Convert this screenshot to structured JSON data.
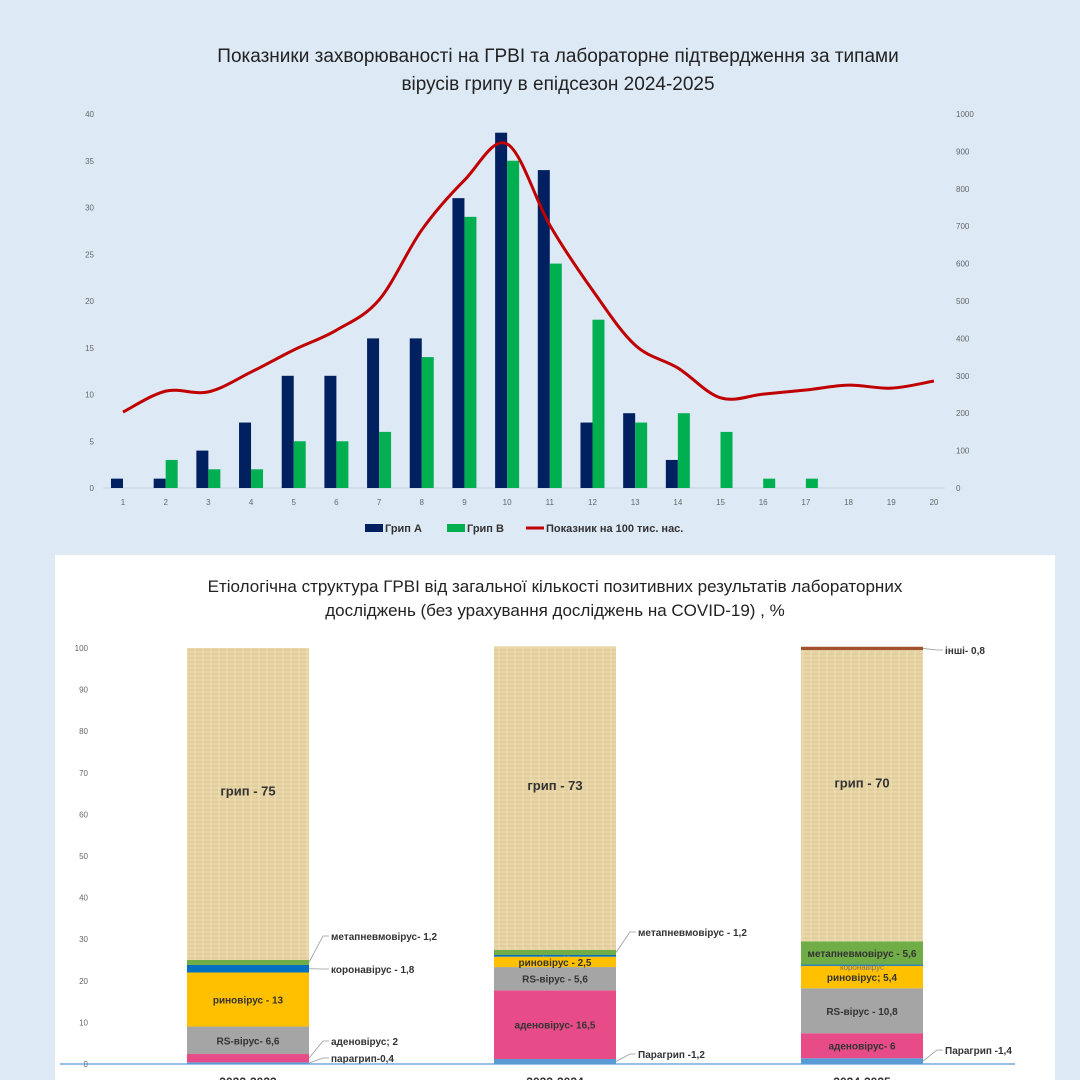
{
  "chart_data": [
    {
      "type": "bar",
      "title": [
        "Показники захворюваності на ГРВІ та лабораторне підтвердження за типами",
        "вірусів грипу в епідсезон 2024-2025"
      ],
      "categories": [
        "1",
        "2",
        "3",
        "4",
        "5",
        "6",
        "7",
        "8",
        "9",
        "10",
        "11",
        "12",
        "13",
        "14",
        "15",
        "16",
        "17",
        "18",
        "19",
        "20"
      ],
      "ylim": [
        0,
        40
      ],
      "yticks": [
        "0",
        "5",
        "10",
        "15",
        "20",
        "25",
        "30",
        "35",
        "40"
      ],
      "y2lim": [
        0,
        1000
      ],
      "y2ticks": [
        "0",
        "100",
        "200",
        "300",
        "400",
        "500",
        "600",
        "700",
        "800",
        "900",
        "1000"
      ],
      "series": [
        {
          "name": "Грип А",
          "type": "bar",
          "color": "#002060",
          "values": [
            1,
            1,
            4,
            7,
            12,
            12,
            16,
            16,
            31,
            38,
            34,
            7,
            8,
            3,
            0,
            0,
            0,
            0,
            0,
            0
          ]
        },
        {
          "name": "Грип В",
          "type": "bar",
          "color": "#00b050",
          "values": [
            0,
            3,
            2,
            2,
            5,
            5,
            6,
            14,
            29,
            35,
            24,
            18,
            7,
            8,
            6,
            1,
            1,
            0,
            0,
            0
          ]
        },
        {
          "name": "Показник на 100 тис. нас.",
          "type": "line",
          "axis": "right",
          "color": "#c00000",
          "values": [
            203,
            259,
            257,
            310,
            369,
            422,
            503,
            690,
            823,
            920,
            703,
            529,
            382,
            321,
            241,
            251,
            262,
            275,
            267,
            286
          ]
        }
      ],
      "legend": "bottom"
    },
    {
      "type": "bar",
      "stacked": true,
      "title": [
        "Етіологічна структура ГРВІ  від загальної кількості позитивних результатів лабораторних",
        "досліджень (без урахування досліджень на COVID-19) , %"
      ],
      "categories": [
        "2022-2023",
        "2023-2024",
        "2024-2025"
      ],
      "ylim": [
        0,
        100
      ],
      "yticks": [
        "0",
        "10",
        "20",
        "30",
        "40",
        "50",
        "60",
        "70",
        "80",
        "90",
        "100"
      ],
      "series": [
        {
          "name": "парагрип",
          "color": "#5b9bd5",
          "values": [
            0.4,
            1.2,
            1.4
          ]
        },
        {
          "name": "аденовірус",
          "color": "#e84c88",
          "values": [
            2,
            16.5,
            6
          ]
        },
        {
          "name": "RS-вірус",
          "color": "#a5a5a5",
          "values": [
            6.6,
            5.6,
            10.8
          ]
        },
        {
          "name": "риновірус",
          "color": "#ffc000",
          "values": [
            13,
            2.5,
            5.4
          ]
        },
        {
          "name": "коронавірус",
          "color": "#0070c0",
          "values": [
            1.8,
            0.4,
            0.3
          ]
        },
        {
          "name": "метапневмовірус",
          "color": "#70ad47",
          "values": [
            1.2,
            1.2,
            5.6
          ]
        },
        {
          "name": "грип",
          "color": "#e6d3a3",
          "values": [
            75,
            73,
            70
          ]
        },
        {
          "name": "інші",
          "color": "#a0522d",
          "values": [
            0,
            0,
            0.8
          ]
        }
      ],
      "labels": [
        [
          "парагрип-0,4",
          "аденовірус; 2",
          "RS-вірус- 6,6",
          "риновірус - 13",
          "коронавірус - 1,8",
          "метапневмовірус- 1,2",
          "грип - 75"
        ],
        [
          "Парагрип -1,2",
          "аденовірус-  16,5",
          "RS-вірус - 5,6",
          "риновірус - 2,5",
          "коронавірус",
          "метапневмовірус - 1,2",
          "грип - 73"
        ],
        [
          "Парагрип -1,4",
          "аденовірус- 6",
          "RS-вірус - 10,8",
          "риновірус; 5,4",
          "коронавірус",
          "метапневмовірус - 5,6",
          "грип - 70",
          "інші- 0,8"
        ]
      ]
    }
  ]
}
